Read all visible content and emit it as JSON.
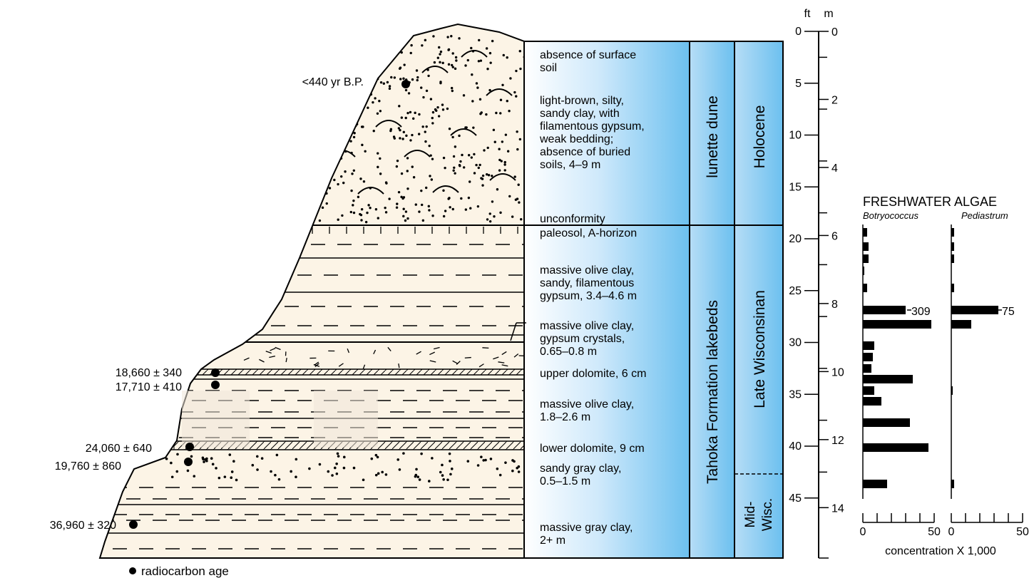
{
  "ages": {
    "a1": "<440 yr B.P.",
    "a2": "18,660 ± 340",
    "a3": "17,710 ± 410",
    "a4": "24,060 ± 640",
    "a5": "19,760 ± 860",
    "a6": "36,960 ± 320"
  },
  "legend": "radiocarbon age",
  "descriptions": {
    "d1": [
      "absence of surface",
      "soil"
    ],
    "d2": [
      "light-brown, silty,",
      "sandy clay, with",
      "filamentous gypsum,",
      "weak bedding;",
      "absence of buried",
      "soils, 4–9 m"
    ],
    "d3": [
      "unconformity"
    ],
    "d4": [
      "paleosol, A-horizon"
    ],
    "d5": [
      "massive olive clay,",
      "sandy, filamentous",
      "gypsum, 3.4–4.6 m"
    ],
    "d6": [
      "massive olive clay,",
      "gypsum crystals,",
      "0.65–0.8 m"
    ],
    "d7": [
      "upper dolomite, 6 cm"
    ],
    "d8": [
      "massive olive clay,",
      "1.8–2.6 m"
    ],
    "d9": [
      "lower dolomite, 9 cm"
    ],
    "d10": [
      "sandy gray clay,",
      "0.5–1.5 m"
    ],
    "d11": [
      "massive gray clay,",
      "2+ m"
    ]
  },
  "units": {
    "dune": "lunette dune",
    "lake": "Tahoka Formation lakebeds",
    "holocene": "Holocene",
    "late": "Late Wisconsinan",
    "mid": [
      "Mid-",
      "Wisc."
    ]
  },
  "scale": {
    "ft_label": "ft",
    "m_label": "m",
    "ft_ticks": [
      "0",
      "5",
      "10",
      "15",
      "20",
      "25",
      "30",
      "35",
      "40",
      "45"
    ],
    "m_ticks": [
      "0",
      "2",
      "4",
      "6",
      "8",
      "10",
      "12",
      "14"
    ]
  },
  "algae": {
    "title": "FRESHWATER  ALGAE",
    "series": [
      {
        "name": "Botryococcus",
        "label_value": "309"
      },
      {
        "name": "Pediastrum",
        "label_value": "75"
      }
    ],
    "axis_ticks": [
      "0",
      "50"
    ],
    "xlabel": "concentration X 1,000"
  }
}
